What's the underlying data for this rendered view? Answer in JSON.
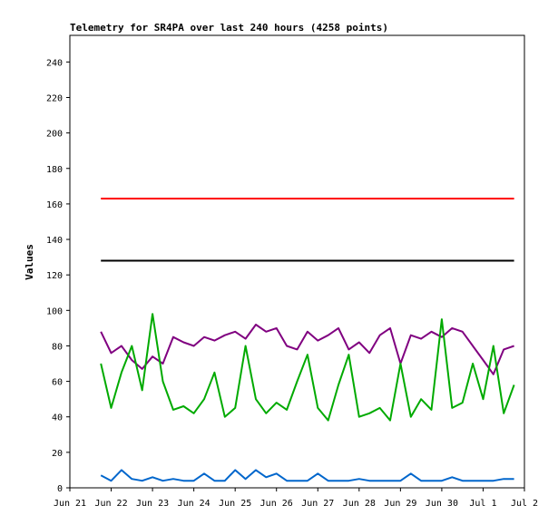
{
  "chart_data": {
    "type": "line",
    "title": "Telemetry for SR4PA over last 240 hours (4258 points)",
    "xlabel": "",
    "ylabel": "Values",
    "x_ticks": [
      "Jun 21",
      "Jun 22",
      "Jun 23",
      "Jun 24",
      "Jun 25",
      "Jun 26",
      "Jun 27",
      "Jun 28",
      "Jun 29",
      "Jun 30",
      "Jul 1",
      "Jul 2"
    ],
    "xlim": [
      "2021-06-21",
      "2021-07-02"
    ],
    "ylim": [
      0,
      255
    ],
    "y_ticks": [
      0,
      20,
      40,
      60,
      80,
      100,
      120,
      140,
      160,
      180,
      200,
      220,
      240
    ],
    "grid": false,
    "legend": "none",
    "series": [
      {
        "color": "#ff0000",
        "x": [
          "2021-06-21 18:00",
          "2021-07-01 18:00"
        ],
        "y": [
          163,
          163
        ]
      },
      {
        "color": "#000000",
        "x": [
          "2021-06-21 18:00",
          "2021-07-01 18:00"
        ],
        "y": [
          128,
          128
        ]
      },
      {
        "color": "#800080",
        "x": [
          "2021-06-21 18:00",
          "2021-06-22 00:00",
          "2021-06-22 06:00",
          "2021-06-22 12:00",
          "2021-06-22 18:00",
          "2021-06-23 00:00",
          "2021-06-23 06:00",
          "2021-06-23 12:00",
          "2021-06-23 18:00",
          "2021-06-24 00:00",
          "2021-06-24 06:00",
          "2021-06-24 12:00",
          "2021-06-24 18:00",
          "2021-06-25 00:00",
          "2021-06-25 06:00",
          "2021-06-25 12:00",
          "2021-06-25 18:00",
          "2021-06-26 00:00",
          "2021-06-26 06:00",
          "2021-06-26 12:00",
          "2021-06-26 18:00",
          "2021-06-27 00:00",
          "2021-06-27 06:00",
          "2021-06-27 12:00",
          "2021-06-27 18:00",
          "2021-06-28 00:00",
          "2021-06-28 06:00",
          "2021-06-28 12:00",
          "2021-06-28 18:00",
          "2021-06-29 00:00",
          "2021-06-29 06:00",
          "2021-06-29 12:00",
          "2021-06-29 18:00",
          "2021-06-30 00:00",
          "2021-06-30 06:00",
          "2021-06-30 12:00",
          "2021-06-30 18:00",
          "2021-07-01 00:00",
          "2021-07-01 06:00",
          "2021-07-01 12:00",
          "2021-07-01 18:00"
        ],
        "y": [
          88,
          76,
          80,
          72,
          67,
          74,
          70,
          85,
          82,
          80,
          85,
          83,
          86,
          88,
          84,
          92,
          88,
          90,
          80,
          78,
          88,
          83,
          86,
          90,
          78,
          82,
          76,
          86,
          90,
          70,
          86,
          84,
          88,
          85,
          90,
          88,
          80,
          72,
          64,
          78,
          80
        ]
      },
      {
        "color": "#00aa00",
        "x": [
          "2021-06-21 18:00",
          "2021-06-22 00:00",
          "2021-06-22 06:00",
          "2021-06-22 12:00",
          "2021-06-22 18:00",
          "2021-06-23 00:00",
          "2021-06-23 06:00",
          "2021-06-23 12:00",
          "2021-06-23 18:00",
          "2021-06-24 00:00",
          "2021-06-24 06:00",
          "2021-06-24 12:00",
          "2021-06-24 18:00",
          "2021-06-25 00:00",
          "2021-06-25 06:00",
          "2021-06-25 12:00",
          "2021-06-25 18:00",
          "2021-06-26 00:00",
          "2021-06-26 06:00",
          "2021-06-26 12:00",
          "2021-06-26 18:00",
          "2021-06-27 00:00",
          "2021-06-27 06:00",
          "2021-06-27 12:00",
          "2021-06-27 18:00",
          "2021-06-28 00:00",
          "2021-06-28 06:00",
          "2021-06-28 12:00",
          "2021-06-28 18:00",
          "2021-06-29 00:00",
          "2021-06-29 06:00",
          "2021-06-29 12:00",
          "2021-06-29 18:00",
          "2021-06-30 00:00",
          "2021-06-30 06:00",
          "2021-06-30 12:00",
          "2021-06-30 18:00",
          "2021-07-01 00:00",
          "2021-07-01 06:00",
          "2021-07-01 12:00",
          "2021-07-01 18:00"
        ],
        "y": [
          70,
          45,
          65,
          80,
          55,
          98,
          60,
          44,
          46,
          42,
          50,
          65,
          40,
          45,
          80,
          50,
          42,
          48,
          44,
          60,
          75,
          45,
          38,
          58,
          75,
          40,
          42,
          45,
          38,
          70,
          40,
          50,
          44,
          95,
          45,
          48,
          70,
          50,
          80,
          42,
          58
        ]
      },
      {
        "color": "#0066cc",
        "x": [
          "2021-06-21 18:00",
          "2021-06-22 00:00",
          "2021-06-22 06:00",
          "2021-06-22 12:00",
          "2021-06-22 18:00",
          "2021-06-23 00:00",
          "2021-06-23 06:00",
          "2021-06-23 12:00",
          "2021-06-23 18:00",
          "2021-06-24 00:00",
          "2021-06-24 06:00",
          "2021-06-24 12:00",
          "2021-06-24 18:00",
          "2021-06-25 00:00",
          "2021-06-25 06:00",
          "2021-06-25 12:00",
          "2021-06-25 18:00",
          "2021-06-26 00:00",
          "2021-06-26 06:00",
          "2021-06-26 12:00",
          "2021-06-26 18:00",
          "2021-06-27 00:00",
          "2021-06-27 06:00",
          "2021-06-27 12:00",
          "2021-06-27 18:00",
          "2021-06-28 00:00",
          "2021-06-28 06:00",
          "2021-06-28 12:00",
          "2021-06-28 18:00",
          "2021-06-29 00:00",
          "2021-06-29 06:00",
          "2021-06-29 12:00",
          "2021-06-29 18:00",
          "2021-06-30 00:00",
          "2021-06-30 06:00",
          "2021-06-30 12:00",
          "2021-06-30 18:00",
          "2021-07-01 00:00",
          "2021-07-01 06:00",
          "2021-07-01 12:00",
          "2021-07-01 18:00"
        ],
        "y": [
          7,
          4,
          10,
          5,
          4,
          6,
          4,
          5,
          4,
          4,
          8,
          4,
          4,
          10,
          5,
          10,
          6,
          8,
          4,
          4,
          4,
          8,
          4,
          4,
          4,
          5,
          4,
          4,
          4,
          4,
          8,
          4,
          4,
          4,
          6,
          4,
          4,
          4,
          4,
          5,
          5
        ]
      }
    ]
  }
}
